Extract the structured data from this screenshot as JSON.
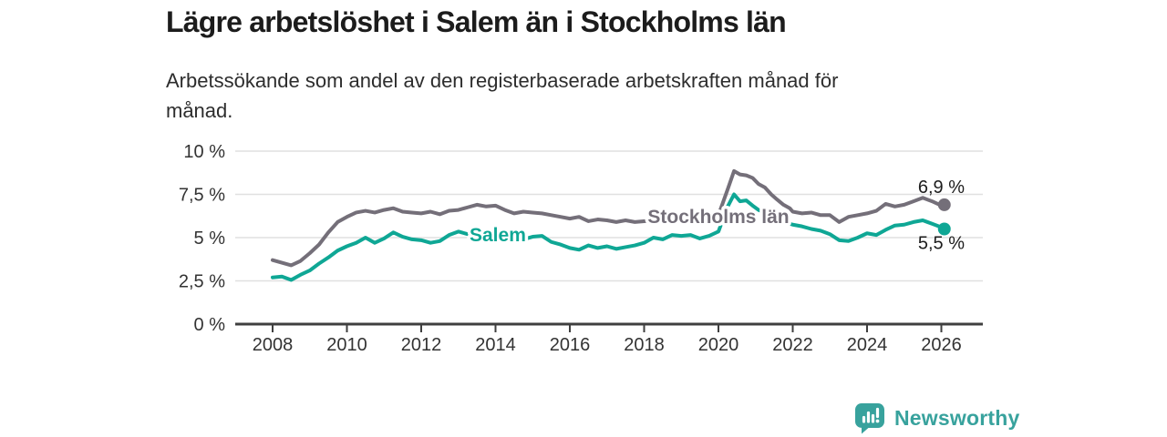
{
  "header": {
    "title": "Lägre arbetslöshet i Salem än i Stockholms län",
    "subtitle": "Arbetssökande som andel av den registerbaserade arbetskraften månad för månad."
  },
  "chart_data": {
    "type": "line",
    "title": "Lägre arbetslöshet i Salem än i Stockholms län",
    "xlabel": "",
    "ylabel": "Arbetssökande som andel av den registerbaserade arbetskraften",
    "x_unit": "decimal year (monthly series)",
    "xlim": [
      2007.1,
      2027.1
    ],
    "ylim": [
      0,
      10
    ],
    "grid": "horizontal",
    "legend": "inline labels on lines",
    "xticks": [
      2008,
      2010,
      2012,
      2014,
      2016,
      2018,
      2020,
      2022,
      2024,
      2026
    ],
    "yticks": [
      {
        "v": 0,
        "label": "0 %"
      },
      {
        "v": 2.5,
        "label": "2,5 %"
      },
      {
        "v": 5,
        "label": "5 %"
      },
      {
        "v": 7.5,
        "label": "7,5 %"
      },
      {
        "v": 10,
        "label": "10 %"
      }
    ],
    "x": [
      2008.0,
      2008.25,
      2008.5,
      2008.75,
      2009.0,
      2009.25,
      2009.5,
      2009.75,
      2010.0,
      2010.25,
      2010.5,
      2010.75,
      2011.0,
      2011.25,
      2011.5,
      2011.75,
      2012.0,
      2012.25,
      2012.5,
      2012.75,
      2013.0,
      2013.25,
      2013.5,
      2013.75,
      2014.0,
      2014.25,
      2014.5,
      2014.75,
      2015.0,
      2015.25,
      2015.5,
      2015.75,
      2016.0,
      2016.25,
      2016.5,
      2016.75,
      2017.0,
      2017.25,
      2017.5,
      2017.75,
      2018.0,
      2018.25,
      2018.5,
      2018.75,
      2019.0,
      2019.25,
      2019.5,
      2019.75,
      2020.0,
      2020.25,
      2020.42,
      2020.58,
      2020.75,
      2020.92,
      2021.08,
      2021.25,
      2021.42,
      2021.58,
      2021.75,
      2021.92,
      2022.0,
      2022.25,
      2022.5,
      2022.75,
      2023.0,
      2023.25,
      2023.5,
      2023.75,
      2024.0,
      2024.25,
      2024.5,
      2024.75,
      2025.0,
      2025.25,
      2025.5,
      2025.75,
      2026.0,
      2026.08
    ],
    "series": [
      {
        "id": "stockholm",
        "name": "Stockholms län",
        "color": "#746f79",
        "end_label": "6,9 %",
        "end_value": 6.9,
        "inline_label": {
          "x": 2020.0,
          "y": 6.2
        },
        "values": [
          3.7,
          3.55,
          3.4,
          3.65,
          4.1,
          4.6,
          5.3,
          5.9,
          6.2,
          6.45,
          6.55,
          6.45,
          6.6,
          6.7,
          6.5,
          6.45,
          6.4,
          6.5,
          6.35,
          6.55,
          6.6,
          6.75,
          6.9,
          6.8,
          6.85,
          6.6,
          6.4,
          6.5,
          6.45,
          6.4,
          6.3,
          6.2,
          6.1,
          6.2,
          5.95,
          6.05,
          6.0,
          5.9,
          6.0,
          5.9,
          5.95,
          6.0,
          6.05,
          5.95,
          6.0,
          6.05,
          6.0,
          6.1,
          6.3,
          7.8,
          8.85,
          8.65,
          8.6,
          8.45,
          8.1,
          7.9,
          7.5,
          7.2,
          6.9,
          6.7,
          6.5,
          6.4,
          6.45,
          6.3,
          6.3,
          5.9,
          6.2,
          6.3,
          6.4,
          6.55,
          6.95,
          6.8,
          6.9,
          7.1,
          7.3,
          7.1,
          6.85,
          6.9
        ]
      },
      {
        "id": "salem",
        "name": "Salem",
        "color": "#0fa795",
        "end_label": "5,5 %",
        "end_value": 5.5,
        "inline_label": {
          "x": 2014.06,
          "y": 5.15
        },
        "values": [
          2.7,
          2.75,
          2.55,
          2.85,
          3.1,
          3.5,
          3.85,
          4.25,
          4.5,
          4.7,
          5.0,
          4.7,
          4.95,
          5.3,
          5.05,
          4.9,
          4.85,
          4.7,
          4.8,
          5.15,
          5.35,
          5.2,
          5.15,
          5.2,
          5.1,
          5.0,
          5.15,
          4.9,
          5.05,
          5.1,
          4.75,
          4.6,
          4.4,
          4.3,
          4.55,
          4.4,
          4.5,
          4.35,
          4.45,
          4.55,
          4.7,
          5.0,
          4.9,
          5.15,
          5.1,
          5.15,
          4.95,
          5.1,
          5.35,
          6.8,
          7.5,
          7.1,
          7.15,
          6.85,
          6.6,
          6.45,
          6.3,
          6.1,
          5.9,
          5.8,
          5.75,
          5.65,
          5.5,
          5.4,
          5.2,
          4.85,
          4.8,
          5.0,
          5.25,
          5.15,
          5.45,
          5.7,
          5.75,
          5.9,
          6.0,
          5.8,
          5.6,
          5.5
        ]
      }
    ]
  },
  "footer": {
    "brand": "Newsworthy",
    "logo_icon": "bar-chart-speech-bubble-icon"
  },
  "colors": {
    "background": "#ffffff",
    "title_text": "#1c1c1c",
    "subtitle_text": "#2d2d2d",
    "axis_text": "#333333",
    "grid": "#e0e0e0",
    "axis": "#3f3f3f",
    "stockholm_line": "#746f79",
    "salem_line": "#0fa795",
    "brand_teal": "#38a29d",
    "end_label_text": "#1d1d1d"
  }
}
